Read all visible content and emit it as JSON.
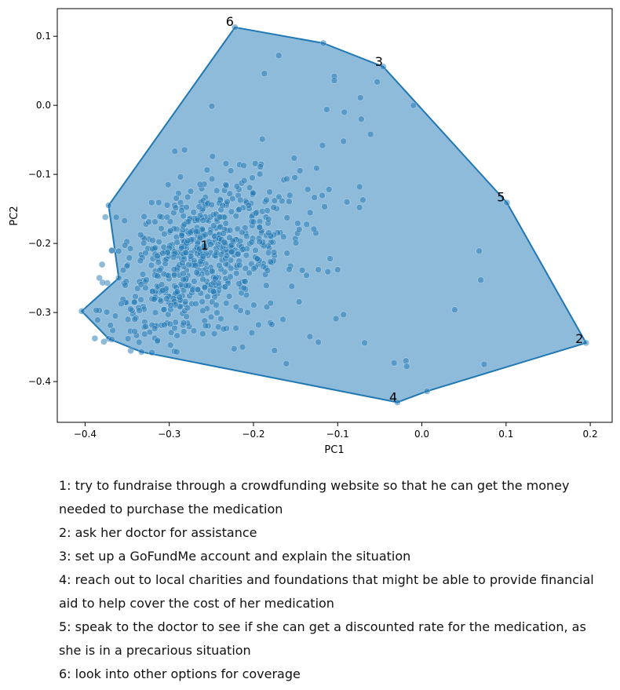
{
  "chart_data": {
    "type": "scatter",
    "title": "",
    "xlabel": "PC1",
    "ylabel": "PC2",
    "xlim": [
      -0.433,
      0.226
    ],
    "ylim": [
      -0.459,
      0.14
    ],
    "xticks": [
      -0.4,
      -0.3,
      -0.2,
      -0.1,
      0.0,
      0.1,
      0.2
    ],
    "xtick_labels": [
      "−0.4",
      "−0.3",
      "−0.2",
      "−0.1",
      "0.0",
      "0.1",
      "0.2"
    ],
    "yticks": [
      0.1,
      0.0,
      -0.1,
      -0.2,
      -0.3,
      -0.4
    ],
    "ytick_labels": [
      "0.1",
      "0.0",
      "−0.1",
      "−0.2",
      "−0.3",
      "−0.4"
    ],
    "grid": false,
    "colors": {
      "points": "#1f77b4",
      "hull_fill": "#8fbbdb",
      "hull_stroke": "#1f77b4"
    },
    "hull": [
      [
        -0.404,
        -0.298
      ],
      [
        -0.36,
        -0.25
      ],
      [
        -0.372,
        -0.145
      ],
      [
        -0.222,
        0.113
      ],
      [
        -0.117,
        0.09
      ],
      [
        -0.046,
        0.056
      ],
      [
        0.101,
        -0.141
      ],
      [
        0.195,
        -0.344
      ],
      [
        0.006,
        -0.414
      ],
      [
        -0.029,
        -0.43
      ],
      [
        -0.333,
        -0.357
      ],
      [
        -0.372,
        -0.338
      ]
    ],
    "points": [
      [
        -0.404,
        -0.298
      ],
      [
        -0.222,
        0.113
      ],
      [
        -0.117,
        0.09
      ],
      [
        -0.046,
        0.056
      ],
      [
        0.101,
        -0.141
      ],
      [
        0.195,
        -0.344
      ],
      [
        -0.029,
        -0.43
      ],
      [
        0.006,
        -0.414
      ],
      [
        -0.333,
        -0.357
      ],
      [
        -0.372,
        -0.338
      ],
      [
        -0.372,
        -0.145
      ],
      [
        -0.36,
        -0.25
      ],
      [
        -0.17,
        0.072
      ],
      [
        -0.187,
        0.046
      ],
      [
        -0.104,
        0.042
      ],
      [
        -0.104,
        0.036
      ],
      [
        -0.053,
        0.034
      ],
      [
        -0.073,
        0.011
      ],
      [
        -0.01,
        0.0
      ],
      [
        -0.113,
        -0.006
      ],
      [
        -0.092,
        -0.01
      ],
      [
        -0.072,
        -0.02
      ],
      [
        -0.061,
        -0.042
      ],
      [
        -0.118,
        -0.058
      ],
      [
        -0.125,
        -0.091
      ],
      [
        -0.093,
        -0.052
      ],
      [
        -0.074,
        -0.118
      ],
      [
        -0.07,
        -0.137
      ],
      [
        -0.089,
        -0.14
      ],
      [
        -0.074,
        -0.148
      ],
      [
        -0.126,
        -0.185
      ],
      [
        -0.109,
        -0.222
      ],
      [
        -0.123,
        -0.238
      ],
      [
        -0.1,
        -0.238
      ],
      [
        -0.133,
        -0.335
      ],
      [
        -0.093,
        -0.303
      ],
      [
        -0.102,
        -0.309
      ],
      [
        -0.068,
        -0.344
      ],
      [
        -0.161,
        -0.374
      ],
      [
        -0.123,
        -0.343
      ],
      [
        0.068,
        -0.211
      ],
      [
        0.07,
        -0.253
      ],
      [
        0.039,
        -0.296
      ],
      [
        0.074,
        -0.375
      ],
      [
        -0.033,
        -0.373
      ],
      [
        -0.019,
        -0.37
      ],
      [
        -0.018,
        -0.378
      ],
      [
        -0.213,
        -0.35
      ],
      [
        -0.175,
        -0.355
      ],
      [
        -0.349,
        -0.338
      ],
      [
        -0.349,
        -0.31
      ],
      [
        -0.364,
        -0.305
      ],
      [
        -0.383,
        -0.25
      ],
      [
        -0.368,
        -0.21
      ],
      [
        -0.353,
        -0.167
      ],
      [
        -0.232,
        -0.323
      ],
      [
        -0.207,
        -0.3
      ],
      [
        -0.194,
        -0.318
      ],
      [
        -0.18,
        -0.315
      ],
      [
        -0.165,
        -0.31
      ]
    ],
    "cluster": {
      "center": [
        -0.27,
        -0.225
      ],
      "spread": [
        0.062,
        0.062
      ],
      "count": 720
    },
    "annotations": [
      {
        "label": "1",
        "x": -0.258,
        "y": -0.204
      },
      {
        "label": "2",
        "x": 0.187,
        "y": -0.339
      },
      {
        "label": "3",
        "x": -0.051,
        "y": 0.062
      },
      {
        "label": "4",
        "x": -0.034,
        "y": -0.424
      },
      {
        "label": "5",
        "x": 0.094,
        "y": -0.134
      },
      {
        "label": "6",
        "x": -0.228,
        "y": 0.12
      }
    ]
  },
  "legend": [
    "1: try to fundraise through a crowdfunding website so that he can get the money needed to purchase the medication",
    "2: ask her doctor for assistance",
    "3: set up a GoFundMe account and explain the situation",
    "4: reach out to local charities and foundations that might be able to provide financial aid to help cover the cost of her medication",
    "5: speak to the doctor to see if she can get a discounted rate for the medication, as she is in a precarious situation",
    "6: look into other options for coverage"
  ]
}
